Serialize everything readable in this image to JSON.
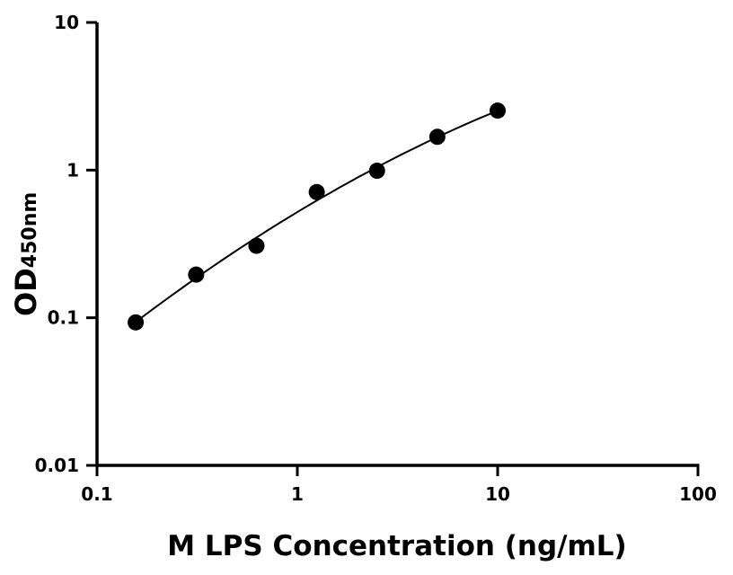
{
  "chart_data": {
    "type": "scatter",
    "title": "",
    "xlabel": "M LPS Concentration (ng/mL)",
    "ylabel_main": "OD",
    "ylabel_sub": "450nm",
    "x_scale": "log",
    "y_scale": "log",
    "xlim": [
      0.1,
      100
    ],
    "ylim": [
      0.01,
      10
    ],
    "x_ticks": [
      0.1,
      1,
      10,
      100
    ],
    "x_tick_labels": [
      "0.1",
      "1",
      "10",
      "100"
    ],
    "y_ticks": [
      0.01,
      0.1,
      1,
      10
    ],
    "y_tick_labels": [
      "0.01",
      "0.1",
      "1",
      "10"
    ],
    "grid": false,
    "fit_curve": true,
    "series": [
      {
        "x": [
          0.156,
          0.3125,
          0.625,
          1.25,
          2.5,
          5,
          10
        ],
        "y": [
          0.093,
          0.196,
          0.307,
          0.71,
          0.99,
          1.68,
          2.53
        ]
      }
    ],
    "colors": {
      "points": "#000000",
      "curve": "#000000",
      "axes": "#000000"
    }
  }
}
